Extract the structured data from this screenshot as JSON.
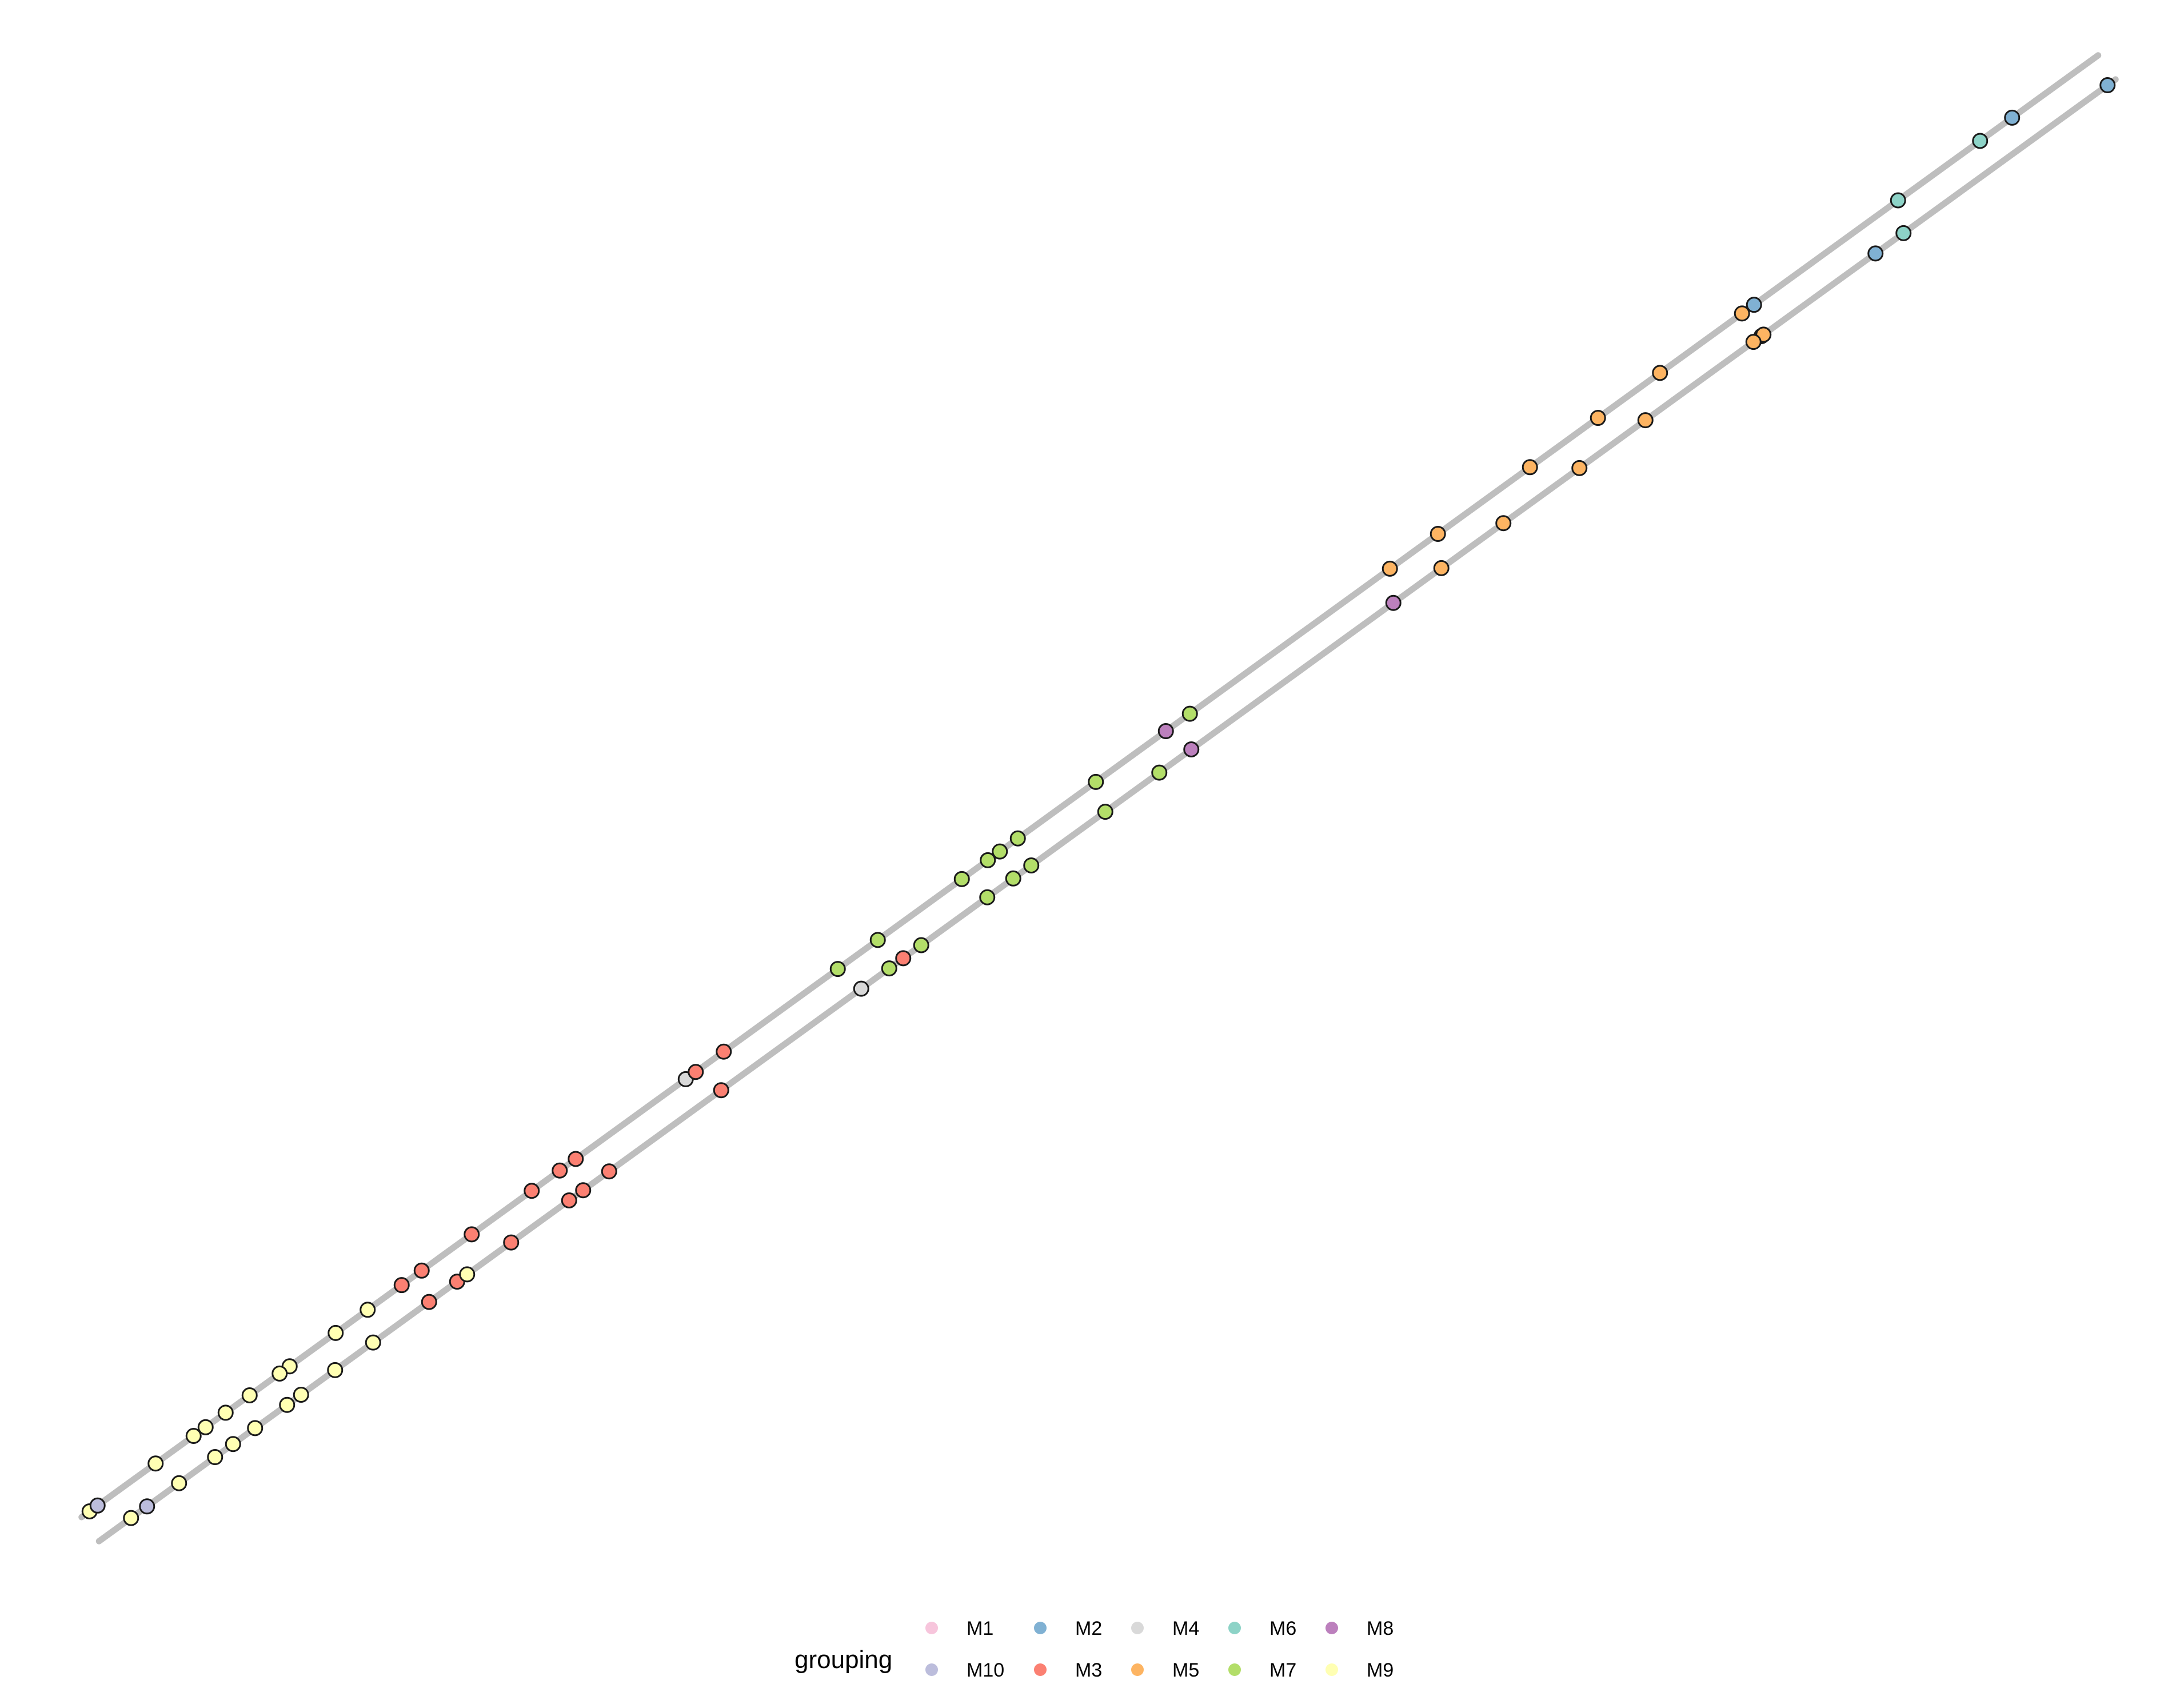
{
  "chart_data": {
    "type": "scatter",
    "title": "",
    "xlabel": "",
    "ylabel": "",
    "axes_visible": false,
    "grid": false,
    "xlim": [
      0,
      1
    ],
    "ylim": [
      0,
      1
    ],
    "trajectory": {
      "color": "#bebebe",
      "path": [
        [
          0.0,
          0.0
        ],
        [
          1.0,
          1.0
        ]
      ]
    },
    "legend": {
      "title": "grouping",
      "position": "bottom",
      "entries": [
        {
          "label": "M1",
          "color": "#f7c5dc"
        },
        {
          "label": "M10",
          "color": "#bcbddc"
        },
        {
          "label": "M2",
          "color": "#80b1d3"
        },
        {
          "label": "M3",
          "color": "#fb8072"
        },
        {
          "label": "M4",
          "color": "#d9d9d9"
        },
        {
          "label": "M5",
          "color": "#fdb462"
        },
        {
          "label": "M6",
          "color": "#8dd3c7"
        },
        {
          "label": "M7",
          "color": "#b3de69"
        },
        {
          "label": "M8",
          "color": "#bc80bd"
        },
        {
          "label": "M9",
          "color": "#ffffb3"
        }
      ]
    },
    "series": [
      {
        "name": "M2",
        "color": "#80b1d3",
        "x": [
          1.0,
          0.961,
          0.827,
          0.832,
          0.884
        ]
      },
      {
        "name": "M6",
        "color": "#8dd3c7",
        "x": [
          0.945,
          0.898,
          0.904
        ]
      },
      {
        "name": "M5",
        "color": "#fdb462",
        "x": [
          0.828,
          0.826,
          0.823,
          0.785,
          0.769,
          0.754,
          0.736,
          0.72,
          0.698,
          0.674,
          0.667,
          0.65
        ]
      },
      {
        "name": "M8",
        "color": "#bc80bd",
        "x": [
          0.643,
          0.538,
          0.542
        ]
      },
      {
        "name": "M7",
        "color": "#b3de69",
        "x": [
          0.55,
          0.526,
          0.503,
          0.499,
          0.464,
          0.462,
          0.455,
          0.453,
          0.449,
          0.44,
          0.436,
          0.407,
          0.394,
          0.391,
          0.374
        ]
      },
      {
        "name": "M4",
        "color": "#d9d9d9",
        "x": [
          0.377,
          0.298
        ]
      },
      {
        "name": "M3",
        "color": "#fb8072",
        "x": [
          0.398,
          0.317,
          0.307,
          0.303,
          0.251,
          0.243,
          0.238,
          0.235,
          0.231,
          0.221,
          0.202,
          0.191,
          0.175,
          0.166,
          0.161,
          0.156
        ]
      },
      {
        "name": "M9",
        "color": "#ffffb3",
        "x": [
          0.18,
          0.139,
          0.133,
          0.123,
          0.114,
          0.1,
          0.097,
          0.095,
          0.09,
          0.08,
          0.074,
          0.068,
          0.063,
          0.058,
          0.054,
          0.052,
          0.036,
          0.033,
          0.012,
          0.0
        ]
      },
      {
        "name": "M10",
        "color": "#bcbddc",
        "x": [
          0.02,
          0.004
        ]
      }
    ]
  }
}
